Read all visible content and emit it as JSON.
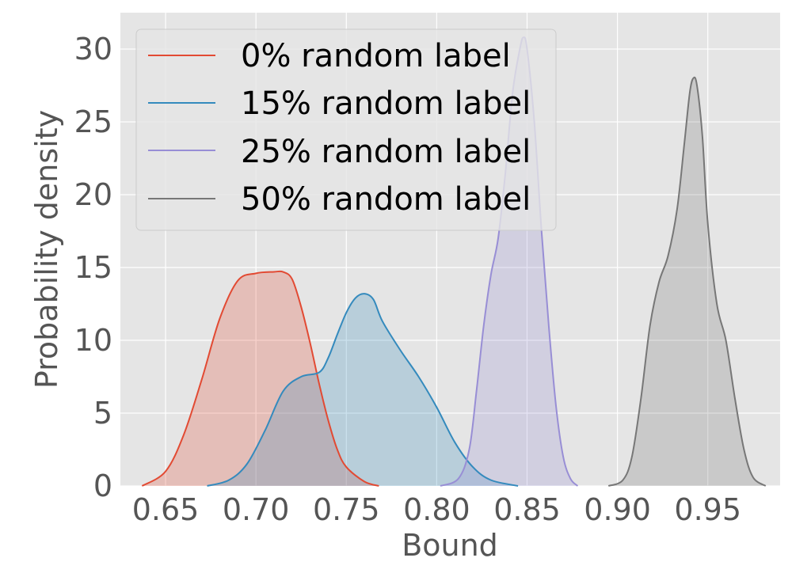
{
  "chart_data": {
    "type": "area",
    "xlabel": "Bound",
    "ylabel": "Probability density",
    "xlim": [
      0.625,
      0.99
    ],
    "ylim": [
      0,
      32.5
    ],
    "xticks": [
      0.65,
      0.7,
      0.75,
      0.8,
      0.85,
      0.9,
      0.95
    ],
    "xtick_labels": [
      "0.65",
      "0.70",
      "0.75",
      "0.80",
      "0.85",
      "0.90",
      "0.95"
    ],
    "yticks": [
      0,
      5,
      10,
      15,
      20,
      25,
      30
    ],
    "ytick_labels": [
      "0",
      "5",
      "10",
      "15",
      "20",
      "25",
      "30"
    ],
    "grid": true,
    "legend_position": "top-left",
    "colors": {
      "plot_background": "#e5e5e5",
      "grid": "#ffffff"
    },
    "series": [
      {
        "name": "0% random label",
        "color": "#e24a33",
        "points": [
          [
            0.637,
            0.0
          ],
          [
            0.65,
            1.0
          ],
          [
            0.66,
            3.5
          ],
          [
            0.67,
            7.3
          ],
          [
            0.68,
            11.5
          ],
          [
            0.69,
            14.1
          ],
          [
            0.7,
            14.6
          ],
          [
            0.71,
            14.7
          ],
          [
            0.715,
            14.7
          ],
          [
            0.72,
            14.2
          ],
          [
            0.725,
            12.3
          ],
          [
            0.73,
            9.8
          ],
          [
            0.735,
            7.0
          ],
          [
            0.74,
            4.5
          ],
          [
            0.745,
            2.5
          ],
          [
            0.75,
            1.3
          ],
          [
            0.76,
            0.3
          ],
          [
            0.768,
            0.0
          ]
        ]
      },
      {
        "name": "15% random label",
        "color": "#348abd",
        "points": [
          [
            0.673,
            0.0
          ],
          [
            0.685,
            0.4
          ],
          [
            0.695,
            1.5
          ],
          [
            0.705,
            3.8
          ],
          [
            0.715,
            6.5
          ],
          [
            0.725,
            7.5
          ],
          [
            0.735,
            7.8
          ],
          [
            0.74,
            8.8
          ],
          [
            0.745,
            10.4
          ],
          [
            0.75,
            11.9
          ],
          [
            0.755,
            12.9
          ],
          [
            0.76,
            13.2
          ],
          [
            0.765,
            12.8
          ],
          [
            0.77,
            11.3
          ],
          [
            0.78,
            9.3
          ],
          [
            0.79,
            7.5
          ],
          [
            0.8,
            5.4
          ],
          [
            0.81,
            3.0
          ],
          [
            0.82,
            1.3
          ],
          [
            0.83,
            0.4
          ],
          [
            0.845,
            0.0
          ]
        ]
      },
      {
        "name": "25% random label",
        "color": "#988ed5",
        "points": [
          [
            0.802,
            0.0
          ],
          [
            0.812,
            0.5
          ],
          [
            0.818,
            2.5
          ],
          [
            0.822,
            6.5
          ],
          [
            0.826,
            11.0
          ],
          [
            0.83,
            14.5
          ],
          [
            0.834,
            17.0
          ],
          [
            0.838,
            21.5
          ],
          [
            0.842,
            27.0
          ],
          [
            0.846,
            30.0
          ],
          [
            0.848,
            30.8
          ],
          [
            0.85,
            30.0
          ],
          [
            0.854,
            25.0
          ],
          [
            0.858,
            17.5
          ],
          [
            0.862,
            11.0
          ],
          [
            0.866,
            5.5
          ],
          [
            0.87,
            2.0
          ],
          [
            0.874,
            0.5
          ],
          [
            0.878,
            0.0
          ]
        ]
      },
      {
        "name": "50% random label",
        "color": "#777777",
        "points": [
          [
            0.895,
            0.0
          ],
          [
            0.903,
            0.4
          ],
          [
            0.908,
            2.0
          ],
          [
            0.913,
            6.0
          ],
          [
            0.918,
            11.0
          ],
          [
            0.923,
            14.0
          ],
          [
            0.928,
            15.8
          ],
          [
            0.933,
            19.0
          ],
          [
            0.937,
            23.5
          ],
          [
            0.94,
            27.0
          ],
          [
            0.942,
            28.0
          ],
          [
            0.944,
            27.5
          ],
          [
            0.947,
            24.0
          ],
          [
            0.95,
            18.0
          ],
          [
            0.955,
            12.5
          ],
          [
            0.96,
            10.0
          ],
          [
            0.965,
            6.0
          ],
          [
            0.97,
            2.5
          ],
          [
            0.975,
            0.6
          ],
          [
            0.982,
            0.0
          ]
        ]
      }
    ]
  }
}
